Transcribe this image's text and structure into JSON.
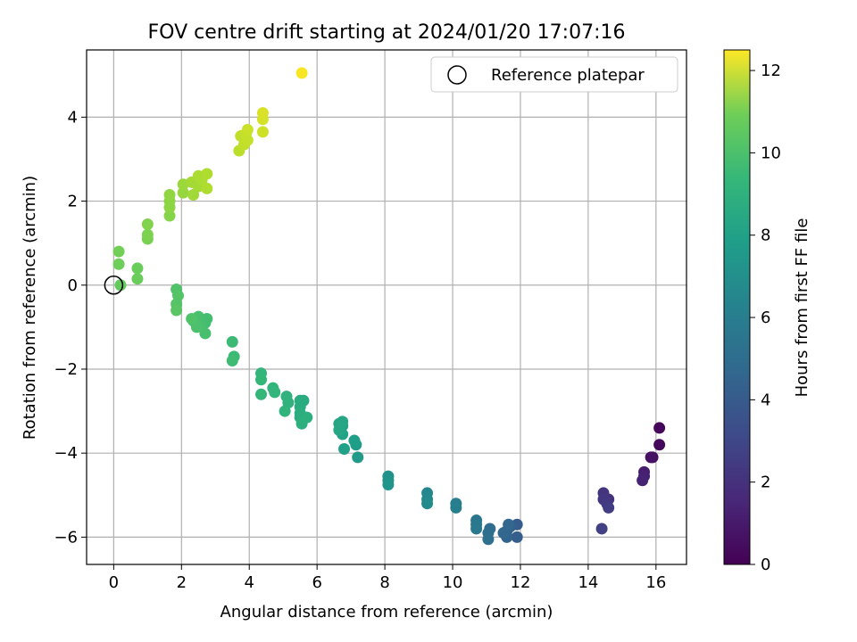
{
  "chart_data": {
    "type": "scatter",
    "title": "FOV centre drift starting at 2024/01/20 17:07:16",
    "xlabel": "Angular distance from reference (arcmin)",
    "ylabel": "Rotation from reference (arcmin)",
    "xlim": [
      -0.8,
      16.9
    ],
    "ylim": [
      -6.65,
      5.6
    ],
    "xticks": [
      0,
      2,
      4,
      6,
      8,
      10,
      12,
      14,
      16
    ],
    "yticks": [
      -6,
      -4,
      -2,
      0,
      2,
      4
    ],
    "grid": true,
    "legend": {
      "placement": "top-right",
      "label": "Reference platepar"
    },
    "colorbar": {
      "label": "Hours from first FF file",
      "range": [
        0,
        12.5
      ],
      "ticks": [
        0,
        2,
        4,
        6,
        8,
        10,
        12
      ],
      "colormap": "viridis"
    },
    "reference": {
      "x": 0,
      "y": 0
    },
    "points": [
      {
        "x": 16.1,
        "y": -3.4,
        "h": 0.2
      },
      {
        "x": 16.1,
        "y": -3.8,
        "h": 0.3
      },
      {
        "x": 15.9,
        "y": -4.1,
        "h": 0.5
      },
      {
        "x": 15.85,
        "y": -4.1,
        "h": 0.6
      },
      {
        "x": 15.65,
        "y": -4.45,
        "h": 1.0
      },
      {
        "x": 15.65,
        "y": -4.55,
        "h": 1.1
      },
      {
        "x": 15.6,
        "y": -4.65,
        "h": 1.2
      },
      {
        "x": 14.6,
        "y": -5.1,
        "h": 1.8
      },
      {
        "x": 14.45,
        "y": -4.95,
        "h": 1.9
      },
      {
        "x": 14.45,
        "y": -5.1,
        "h": 2.0
      },
      {
        "x": 14.55,
        "y": -5.2,
        "h": 2.1
      },
      {
        "x": 14.6,
        "y": -5.3,
        "h": 2.2
      },
      {
        "x": 14.4,
        "y": -5.8,
        "h": 2.4
      },
      {
        "x": 11.9,
        "y": -5.7,
        "h": 3.6
      },
      {
        "x": 11.9,
        "y": -6.0,
        "h": 3.7
      },
      {
        "x": 11.7,
        "y": -5.75,
        "h": 3.8
      },
      {
        "x": 11.6,
        "y": -5.85,
        "h": 3.9
      },
      {
        "x": 11.6,
        "y": -6.0,
        "h": 4.0
      },
      {
        "x": 11.5,
        "y": -5.9,
        "h": 4.1
      },
      {
        "x": 11.65,
        "y": -5.7,
        "h": 4.1
      },
      {
        "x": 11.1,
        "y": -5.8,
        "h": 4.4
      },
      {
        "x": 11.05,
        "y": -5.9,
        "h": 4.5
      },
      {
        "x": 11.05,
        "y": -6.05,
        "h": 4.6
      },
      {
        "x": 10.7,
        "y": -5.6,
        "h": 4.9
      },
      {
        "x": 10.7,
        "y": -5.7,
        "h": 5.0
      },
      {
        "x": 10.7,
        "y": -5.8,
        "h": 5.1
      },
      {
        "x": 10.1,
        "y": -5.2,
        "h": 5.3
      },
      {
        "x": 10.1,
        "y": -5.3,
        "h": 5.4
      },
      {
        "x": 9.25,
        "y": -4.95,
        "h": 5.8
      },
      {
        "x": 9.25,
        "y": -5.1,
        "h": 5.9
      },
      {
        "x": 9.25,
        "y": -5.2,
        "h": 6.0
      },
      {
        "x": 8.1,
        "y": -4.55,
        "h": 6.3
      },
      {
        "x": 8.1,
        "y": -4.65,
        "h": 6.4
      },
      {
        "x": 8.1,
        "y": -4.75,
        "h": 6.5
      },
      {
        "x": 7.2,
        "y": -4.1,
        "h": 6.8
      },
      {
        "x": 7.15,
        "y": -3.8,
        "h": 6.9
      },
      {
        "x": 7.1,
        "y": -3.7,
        "h": 7.0
      },
      {
        "x": 6.8,
        "y": -3.9,
        "h": 7.1
      },
      {
        "x": 6.75,
        "y": -3.55,
        "h": 7.2
      },
      {
        "x": 6.75,
        "y": -3.35,
        "h": 7.2
      },
      {
        "x": 6.65,
        "y": -3.3,
        "h": 7.3
      },
      {
        "x": 6.65,
        "y": -3.45,
        "h": 7.4
      },
      {
        "x": 6.75,
        "y": -3.25,
        "h": 7.4
      },
      {
        "x": 5.6,
        "y": -2.75,
        "h": 7.6
      },
      {
        "x": 5.5,
        "y": -2.75,
        "h": 7.7
      },
      {
        "x": 5.5,
        "y": -2.9,
        "h": 7.7
      },
      {
        "x": 5.5,
        "y": -3.05,
        "h": 7.8
      },
      {
        "x": 5.5,
        "y": -3.15,
        "h": 7.8
      },
      {
        "x": 5.55,
        "y": -3.3,
        "h": 7.9
      },
      {
        "x": 5.7,
        "y": -3.15,
        "h": 7.9
      },
      {
        "x": 5.1,
        "y": -2.65,
        "h": 8.0
      },
      {
        "x": 5.15,
        "y": -2.8,
        "h": 8.0
      },
      {
        "x": 5.05,
        "y": -3.0,
        "h": 8.1
      },
      {
        "x": 4.7,
        "y": -2.45,
        "h": 8.1
      },
      {
        "x": 4.75,
        "y": -2.55,
        "h": 8.2
      },
      {
        "x": 4.35,
        "y": -2.1,
        "h": 8.2
      },
      {
        "x": 4.35,
        "y": -2.25,
        "h": 8.3
      },
      {
        "x": 4.35,
        "y": -2.6,
        "h": 8.3
      },
      {
        "x": 3.5,
        "y": -1.35,
        "h": 8.5
      },
      {
        "x": 3.55,
        "y": -1.7,
        "h": 8.5
      },
      {
        "x": 3.5,
        "y": -1.8,
        "h": 8.6
      },
      {
        "x": 2.75,
        "y": -0.8,
        "h": 8.7
      },
      {
        "x": 2.7,
        "y": -0.9,
        "h": 8.7
      },
      {
        "x": 2.7,
        "y": -1.15,
        "h": 8.8
      },
      {
        "x": 2.55,
        "y": -0.95,
        "h": 8.8
      },
      {
        "x": 2.5,
        "y": -0.75,
        "h": 8.8
      },
      {
        "x": 2.45,
        "y": -1.0,
        "h": 8.9
      },
      {
        "x": 2.35,
        "y": -0.85,
        "h": 8.9
      },
      {
        "x": 2.3,
        "y": -0.8,
        "h": 9.0
      },
      {
        "x": 1.85,
        "y": -0.1,
        "h": 9.0
      },
      {
        "x": 1.9,
        "y": -0.25,
        "h": 9.1
      },
      {
        "x": 1.85,
        "y": -0.45,
        "h": 9.1
      },
      {
        "x": 1.85,
        "y": -0.6,
        "h": 9.2
      },
      {
        "x": 0.2,
        "y": 0.0,
        "h": 9.5
      },
      {
        "x": 0.7,
        "y": 0.15,
        "h": 9.6
      },
      {
        "x": 0.7,
        "y": 0.4,
        "h": 9.6
      },
      {
        "x": 0.15,
        "y": 0.5,
        "h": 9.7
      },
      {
        "x": 0.15,
        "y": 0.8,
        "h": 9.8
      },
      {
        "x": 1.0,
        "y": 1.1,
        "h": 9.9
      },
      {
        "x": 1.0,
        "y": 1.2,
        "h": 10.0
      },
      {
        "x": 1.0,
        "y": 1.45,
        "h": 10.1
      },
      {
        "x": 1.65,
        "y": 1.65,
        "h": 10.2
      },
      {
        "x": 1.65,
        "y": 1.85,
        "h": 10.3
      },
      {
        "x": 1.65,
        "y": 2.0,
        "h": 10.3
      },
      {
        "x": 1.65,
        "y": 2.15,
        "h": 10.4
      },
      {
        "x": 2.05,
        "y": 2.2,
        "h": 10.5
      },
      {
        "x": 2.05,
        "y": 2.4,
        "h": 10.6
      },
      {
        "x": 2.35,
        "y": 2.15,
        "h": 10.7
      },
      {
        "x": 2.3,
        "y": 2.45,
        "h": 10.8
      },
      {
        "x": 2.5,
        "y": 2.35,
        "h": 10.8
      },
      {
        "x": 2.5,
        "y": 2.6,
        "h": 10.9
      },
      {
        "x": 2.6,
        "y": 2.5,
        "h": 10.9
      },
      {
        "x": 2.75,
        "y": 2.3,
        "h": 11.0
      },
      {
        "x": 2.75,
        "y": 2.65,
        "h": 11.0
      },
      {
        "x": 3.7,
        "y": 3.2,
        "h": 11.2
      },
      {
        "x": 3.75,
        "y": 3.55,
        "h": 11.3
      },
      {
        "x": 3.85,
        "y": 3.35,
        "h": 11.3
      },
      {
        "x": 3.9,
        "y": 3.6,
        "h": 11.4
      },
      {
        "x": 3.95,
        "y": 3.45,
        "h": 11.4
      },
      {
        "x": 3.95,
        "y": 3.7,
        "h": 11.5
      },
      {
        "x": 4.4,
        "y": 3.65,
        "h": 11.6
      },
      {
        "x": 4.4,
        "y": 3.95,
        "h": 11.7
      },
      {
        "x": 4.4,
        "y": 4.1,
        "h": 11.8
      },
      {
        "x": 5.55,
        "y": 5.05,
        "h": 12.4
      }
    ]
  }
}
